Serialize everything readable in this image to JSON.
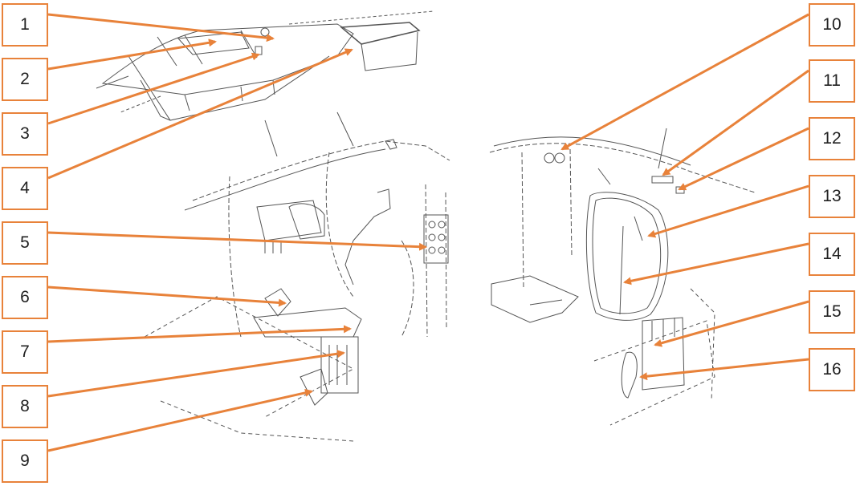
{
  "colors": {
    "accent": "#e8823a",
    "line": "#555555",
    "background": "#ffffff"
  },
  "callouts": [
    "1",
    "2",
    "3",
    "4",
    "5",
    "6",
    "7",
    "8",
    "9",
    "10",
    "11",
    "12",
    "13",
    "14",
    "15",
    "16"
  ]
}
